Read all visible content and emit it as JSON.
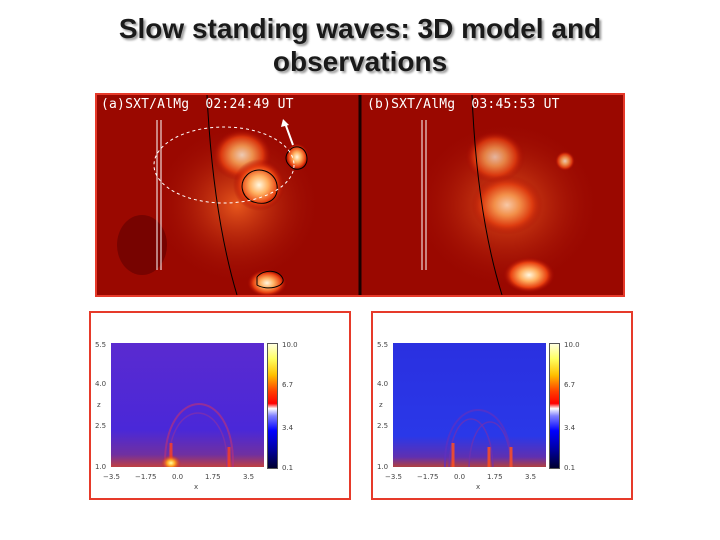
{
  "title": {
    "line1": "Slow standing waves: 3D model and",
    "line2": "observations"
  },
  "observations": [
    {
      "panel": "(a)SXT/AlMg",
      "time": "02:24:49",
      "unit": "UT"
    },
    {
      "panel": "(b)SXT/AlMg",
      "time": "03:45:53",
      "unit": "UT"
    }
  ],
  "simulation": {
    "y_ticks": [
      "5.5",
      "4.0",
      "2.5",
      "1.0"
    ],
    "x_ticks": [
      "−3.5",
      "−1.75",
      "0.0",
      "1.75",
      "3.5"
    ],
    "xlabel": "x",
    "ylabel": "z",
    "colorbar_ticks": [
      "10.0",
      "6.7",
      "3.4",
      "0.1"
    ],
    "colors": {
      "background": "#3a2ad8",
      "loop": "#e84a3a",
      "footpoint": "#ffe060"
    }
  }
}
